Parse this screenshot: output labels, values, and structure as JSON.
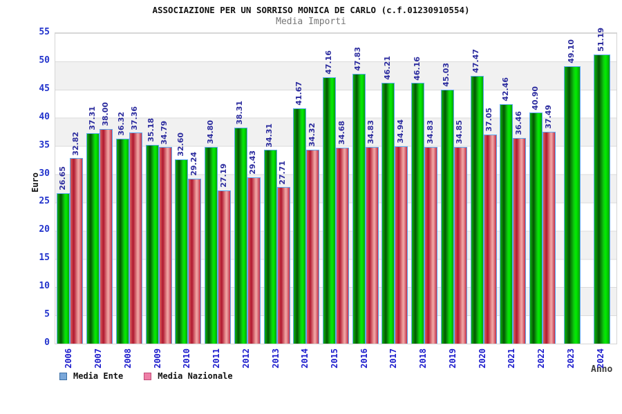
{
  "header": {
    "title": "ASSOCIAZIONE PER UN SORRISO MONICA DE CARLO (c.f.01230910554)",
    "subtitle": "Media Importi"
  },
  "chart_data": {
    "type": "bar",
    "title": "Media Importi",
    "xlabel": "Anno",
    "ylabel": "Euro",
    "ylim": [
      0,
      55
    ],
    "ytick_step": 5,
    "grid": "horizontal-bands-alternating",
    "legend_position": "bottom-left",
    "categories": [
      "2006",
      "2007",
      "2008",
      "2009",
      "2010",
      "2011",
      "2012",
      "2013",
      "2014",
      "2015",
      "2016",
      "2017",
      "2018",
      "2019",
      "2020",
      "2021",
      "2022",
      "2023",
      "2024"
    ],
    "series": [
      {
        "name": "Media Ente",
        "bar_color": "#00cc00",
        "legend_swatch": "#7aa7d9",
        "legend_swatch_border": "#3a6ea5",
        "values": [
          26.65,
          37.31,
          36.32,
          35.18,
          32.6,
          34.8,
          38.31,
          34.31,
          41.67,
          47.16,
          47.83,
          46.21,
          46.16,
          45.03,
          47.47,
          42.46,
          40.9,
          49.1,
          51.19
        ]
      },
      {
        "name": "Media Nazionale",
        "bar_color": "#d94055",
        "legend_swatch": "#ef7fa7",
        "legend_swatch_border": "#c04a77",
        "values": [
          32.82,
          38.0,
          37.36,
          34.79,
          29.24,
          27.19,
          29.43,
          27.71,
          34.32,
          34.68,
          34.83,
          34.94,
          34.83,
          34.85,
          37.05,
          36.46,
          37.49,
          null,
          null
        ]
      }
    ],
    "colors": {
      "value_label": "#2d2d9f",
      "year_label": "#1a1acc",
      "ytick_label": "#2233cc",
      "bar_border": "#5ca8f0",
      "band_gray": "#f1f1f1"
    }
  }
}
